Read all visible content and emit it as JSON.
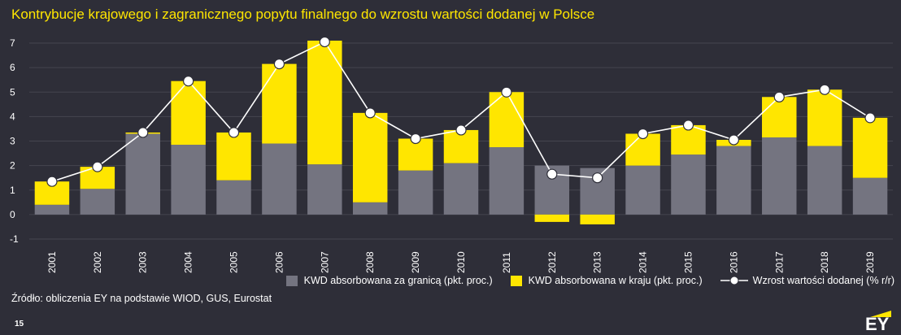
{
  "title": "Kontrybucje krajowego i zagranicznego popytu finalnego do wzrostu wartości dodanej w Polsce",
  "source": "Źródło: obliczenia EY na podstawie WIOD, GUS, Eurostat",
  "page_number": "15",
  "logo": {
    "text": "EY",
    "accent": "#ffe600"
  },
  "legend": {
    "foreign": "KWD absorbowana za granicą (pkt. proc.)",
    "domestic": "KWD absorbowana w kraju (pkt. proc.)",
    "line": "Wzrost wartości dodanej (% r/r)"
  },
  "colors": {
    "background": "#2e2e38",
    "foreign": "#747480",
    "domestic": "#ffe600",
    "line": "#ffffff"
  },
  "chart_data": {
    "type": "bar",
    "stacked": true,
    "title": "Kontrybucje krajowego i zagranicznego popytu finalnego do wzrostu wartości dodanej w Polsce",
    "categories": [
      "2001",
      "2002",
      "2003",
      "2004",
      "2005",
      "2006",
      "2007",
      "2008",
      "2009",
      "2010",
      "2011",
      "2012",
      "2013",
      "2014",
      "2015",
      "2016",
      "2017",
      "2018",
      "2019"
    ],
    "ylim": [
      -1,
      7
    ],
    "yticks": [
      -1,
      0,
      1,
      2,
      3,
      4,
      5,
      6,
      7
    ],
    "grid": true,
    "legend_position": "bottom-right",
    "series": [
      {
        "name": "KWD absorbowana za granicą (pkt. proc.)",
        "kind": "bar",
        "values": [
          0.4,
          1.05,
          3.3,
          2.85,
          1.4,
          2.9,
          2.05,
          0.5,
          1.8,
          2.1,
          2.75,
          2.0,
          1.9,
          2.0,
          2.45,
          2.8,
          3.15,
          2.8,
          1.5
        ]
      },
      {
        "name": "KWD absorbowana w kraju (pkt. proc.)",
        "kind": "bar",
        "values": [
          0.95,
          0.9,
          0.05,
          2.6,
          1.95,
          3.25,
          5.05,
          3.65,
          1.3,
          1.35,
          2.25,
          -0.3,
          -0.4,
          1.3,
          1.2,
          0.25,
          1.65,
          2.3,
          2.45
        ]
      },
      {
        "name": "Wzrost wartości dodanej (% r/r)",
        "kind": "line",
        "values": [
          1.35,
          1.95,
          3.35,
          5.45,
          3.35,
          6.15,
          7.05,
          4.15,
          3.1,
          3.45,
          5.0,
          1.65,
          1.5,
          3.3,
          3.65,
          3.05,
          4.8,
          5.1,
          3.95
        ]
      }
    ]
  }
}
